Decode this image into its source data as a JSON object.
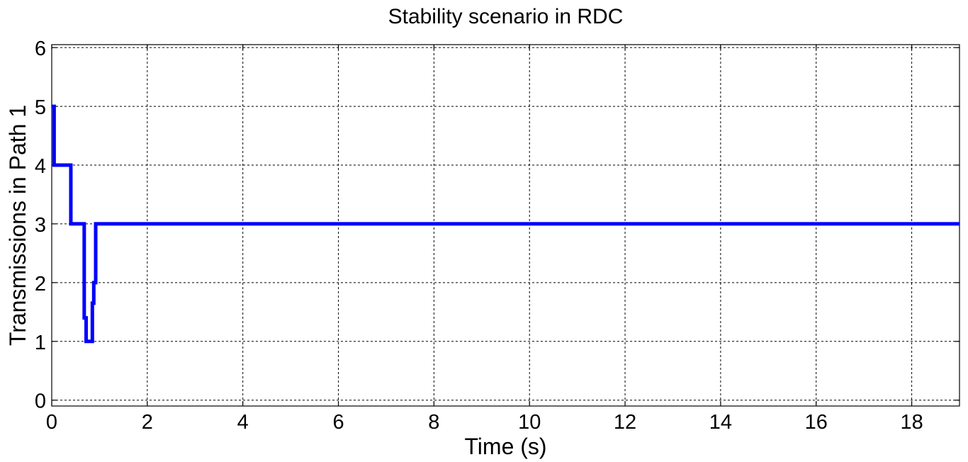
{
  "chart_data": {
    "type": "line",
    "title": "Stability scenario in RDC",
    "xlabel": "Time (s)",
    "ylabel": "Transmissions in Path 1",
    "xlim": [
      0,
      19
    ],
    "ylim": [
      -0.1,
      6.05
    ],
    "xticks": [
      0,
      2,
      4,
      6,
      8,
      10,
      12,
      14,
      16,
      18
    ],
    "yticks": [
      0,
      1,
      2,
      3,
      4,
      5,
      6
    ],
    "grid": true,
    "series": [
      {
        "color": "#0000ff",
        "x": [
          0,
          0.05,
          0.05,
          0.4,
          0.4,
          0.68,
          0.68,
          0.72,
          0.72,
          0.85,
          0.85,
          0.88,
          0.88,
          0.92,
          0.92,
          19
        ],
        "y": [
          5,
          5,
          4,
          4,
          3,
          3,
          1.4,
          1.4,
          1,
          1,
          1.65,
          1.65,
          2,
          2,
          3,
          3
        ]
      }
    ]
  }
}
